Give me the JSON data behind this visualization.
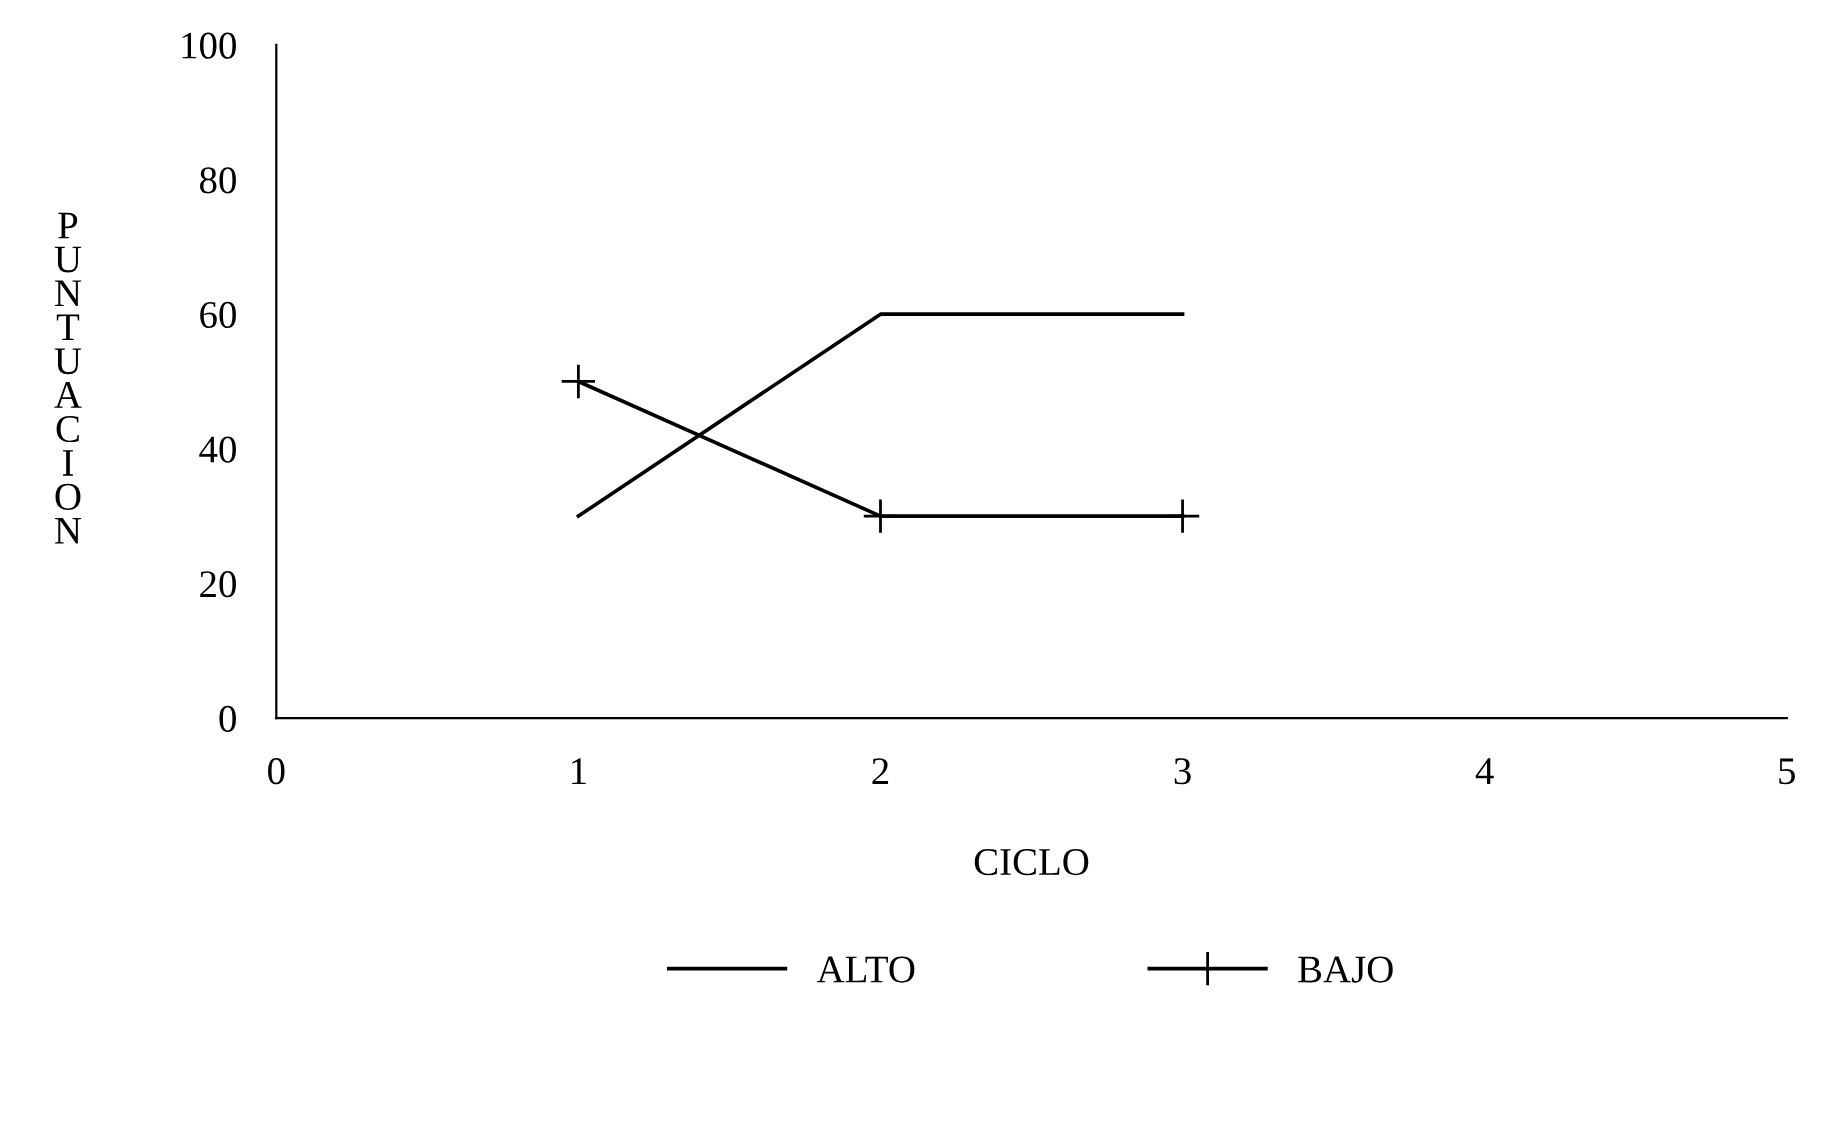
{
  "chart_data": {
    "type": "line",
    "xlabel": "CICLO",
    "ylabel": "P\nU\nN\nT\nU\nA\nC\nI\nO\nN",
    "x": [
      1,
      2,
      3
    ],
    "series": [
      {
        "name": "ALTO",
        "color": "#000000",
        "marker": "none",
        "values": [
          30,
          60,
          60
        ]
      },
      {
        "name": "BAJO",
        "color": "#000000",
        "marker": "cross",
        "values": [
          50,
          30,
          30
        ]
      }
    ],
    "xlim": [
      0,
      5
    ],
    "xticks": [
      0,
      1,
      2,
      3,
      4,
      5
    ],
    "ylim": [
      0,
      100
    ],
    "yticks": [
      0,
      20,
      40,
      60,
      80,
      100
    ],
    "grid": false,
    "legend": "bottom",
    "line_style": "solid"
  }
}
